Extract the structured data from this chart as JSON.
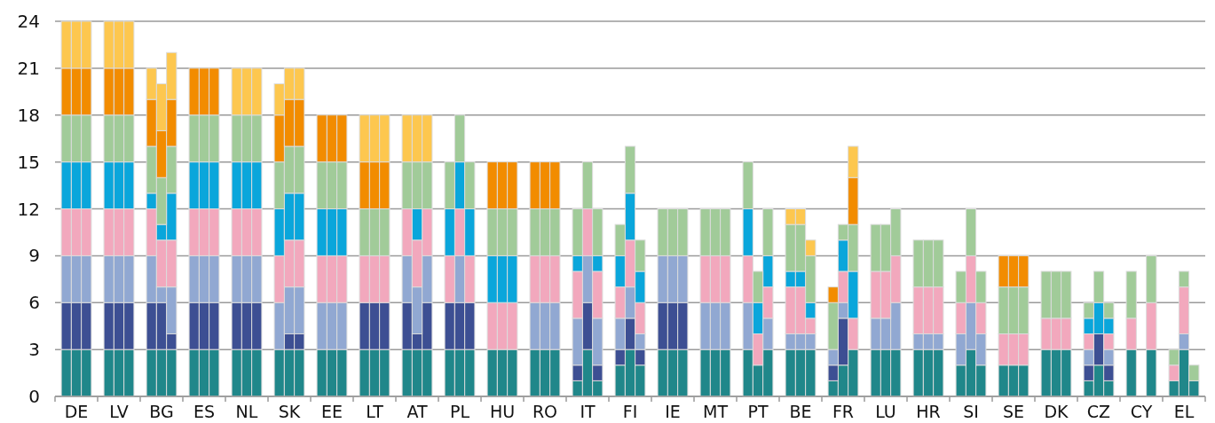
{
  "chart_data": {
    "type": "bar",
    "stacked": true,
    "grid": "y",
    "categories": [
      null,
      "DE",
      null,
      null,
      "LV",
      null,
      null,
      "BG",
      null,
      null,
      "ES",
      null,
      null,
      "NL",
      null,
      null,
      "SK",
      null,
      null,
      "EE",
      null,
      null,
      "LT",
      null,
      null,
      "AT",
      null,
      null,
      "PL",
      null,
      null,
      "HU",
      null,
      null,
      "RO",
      null,
      null,
      "IT",
      null,
      null,
      "FI",
      null,
      null,
      "IE",
      null,
      null,
      "MT",
      null,
      null,
      "PT",
      null,
      null,
      "BE",
      null,
      null,
      "FR",
      null,
      null,
      "LU",
      null,
      null,
      "HR",
      null,
      null,
      "SI",
      null,
      null,
      "SE",
      null,
      null,
      "DK",
      null,
      null,
      "CZ",
      null,
      null,
      "CY",
      null,
      null,
      "EL",
      null
    ],
    "ylim": [
      0,
      24
    ],
    "yticks": [
      0,
      3,
      6,
      9,
      12,
      15,
      18,
      21,
      24
    ],
    "series": [
      {
        "color": "#20878a",
        "values": [
          3,
          3,
          3,
          3,
          3,
          3,
          3,
          3,
          3,
          3,
          3,
          3,
          3,
          3,
          3,
          3,
          3,
          3,
          3,
          3,
          3,
          3,
          3,
          3,
          3,
          3,
          3,
          3,
          3,
          3,
          3,
          3,
          3,
          3,
          3,
          3,
          1,
          3,
          1,
          2,
          3,
          2,
          3,
          3,
          3,
          3,
          3,
          3,
          3,
          2,
          3,
          3,
          3,
          3,
          1,
          2,
          3,
          3,
          3,
          3,
          3,
          3,
          3,
          2,
          3,
          2,
          2,
          2,
          2,
          3,
          3,
          3,
          1,
          2,
          1,
          3,
          0,
          3,
          1,
          3,
          1
        ]
      },
      {
        "color": "#3d4f93",
        "values": [
          3,
          3,
          3,
          3,
          3,
          3,
          3,
          3,
          1,
          3,
          3,
          3,
          3,
          3,
          3,
          0,
          1,
          1,
          0,
          0,
          0,
          3,
          3,
          3,
          3,
          1,
          3,
          3,
          3,
          3,
          0,
          0,
          0,
          0,
          0,
          0,
          1,
          3,
          1,
          1,
          2,
          1,
          3,
          3,
          3,
          0,
          0,
          0,
          0,
          0,
          0,
          0,
          0,
          0,
          1,
          3,
          0,
          0,
          0,
          0,
          0,
          0,
          0,
          0,
          0,
          0,
          0,
          0,
          0,
          0,
          0,
          0,
          1,
          2,
          1,
          0,
          0,
          0,
          0,
          0,
          0
        ]
      },
      {
        "color": "#91a8d2",
        "values": [
          3,
          3,
          3,
          3,
          3,
          3,
          3,
          1,
          3,
          3,
          3,
          3,
          3,
          3,
          3,
          3,
          3,
          3,
          3,
          3,
          3,
          0,
          0,
          0,
          3,
          3,
          3,
          0,
          3,
          0,
          0,
          0,
          0,
          3,
          3,
          3,
          3,
          3,
          3,
          2,
          2,
          1,
          3,
          3,
          3,
          3,
          3,
          3,
          3,
          0,
          2,
          1,
          1,
          1,
          1,
          1,
          0,
          2,
          2,
          3,
          1,
          1,
          1,
          2,
          3,
          2,
          0,
          0,
          0,
          0,
          0,
          0,
          1,
          0,
          1,
          0,
          0,
          0,
          0,
          1,
          0
        ]
      },
      {
        "color": "#f2a8bd",
        "values": [
          3,
          3,
          3,
          3,
          3,
          3,
          3,
          3,
          3,
          3,
          3,
          3,
          3,
          3,
          3,
          3,
          3,
          3,
          3,
          3,
          3,
          3,
          3,
          3,
          3,
          3,
          3,
          3,
          3,
          3,
          3,
          3,
          3,
          3,
          3,
          3,
          3,
          3,
          3,
          2,
          3,
          2,
          0,
          0,
          0,
          3,
          3,
          3,
          3,
          2,
          2,
          3,
          3,
          1,
          0,
          2,
          2,
          3,
          3,
          3,
          3,
          3,
          3,
          2,
          3,
          2,
          2,
          2,
          2,
          2,
          2,
          2,
          1,
          0,
          1,
          2,
          0,
          3,
          1,
          3,
          0
        ]
      },
      {
        "color": "#0aa6db",
        "values": [
          3,
          3,
          3,
          3,
          3,
          3,
          1,
          1,
          3,
          3,
          3,
          3,
          3,
          3,
          3,
          3,
          3,
          3,
          3,
          3,
          3,
          0,
          0,
          0,
          0,
          2,
          0,
          3,
          3,
          3,
          3,
          3,
          3,
          0,
          0,
          0,
          1,
          0,
          1,
          2,
          3,
          2,
          0,
          0,
          0,
          0,
          0,
          0,
          3,
          2,
          2,
          1,
          1,
          1,
          0,
          2,
          3,
          0,
          0,
          0,
          0,
          0,
          0,
          0,
          0,
          0,
          0,
          0,
          0,
          0,
          0,
          0,
          1,
          2,
          1,
          0,
          0,
          0,
          0,
          0,
          0
        ]
      },
      {
        "color": "#a1cb99",
        "values": [
          3,
          3,
          3,
          3,
          3,
          3,
          3,
          3,
          3,
          3,
          3,
          3,
          3,
          3,
          3,
          3,
          3,
          3,
          3,
          3,
          3,
          3,
          3,
          3,
          3,
          3,
          3,
          3,
          3,
          3,
          3,
          3,
          3,
          3,
          3,
          3,
          3,
          3,
          3,
          2,
          3,
          2,
          3,
          3,
          3,
          3,
          3,
          3,
          3,
          2,
          3,
          3,
          3,
          3,
          3,
          1,
          3,
          3,
          3,
          3,
          3,
          3,
          3,
          2,
          3,
          2,
          3,
          3,
          3,
          3,
          3,
          3,
          1,
          2,
          1,
          3,
          0,
          3,
          1,
          1,
          1
        ]
      },
      {
        "color": "#f28c00",
        "values": [
          3,
          3,
          3,
          3,
          3,
          3,
          3,
          3,
          3,
          3,
          3,
          3,
          0,
          0,
          0,
          3,
          3,
          3,
          3,
          3,
          3,
          3,
          3,
          3,
          0,
          0,
          0,
          0,
          0,
          0,
          3,
          3,
          3,
          3,
          3,
          3,
          0,
          0,
          0,
          0,
          0,
          0,
          0,
          0,
          0,
          0,
          0,
          0,
          0,
          0,
          0,
          0,
          0,
          0,
          1,
          0,
          3,
          0,
          0,
          0,
          0,
          0,
          0,
          0,
          0,
          0,
          2,
          2,
          2,
          0,
          0,
          0,
          0,
          0,
          0,
          0,
          0,
          0,
          0,
          0,
          0
        ]
      },
      {
        "color": "#fdc74f",
        "values": [
          3,
          3,
          3,
          3,
          3,
          3,
          2,
          3,
          3,
          0,
          0,
          0,
          3,
          3,
          3,
          2,
          2,
          2,
          0,
          0,
          0,
          3,
          3,
          3,
          3,
          3,
          3,
          0,
          0,
          0,
          0,
          0,
          0,
          0,
          0,
          0,
          0,
          0,
          0,
          0,
          0,
          0,
          0,
          0,
          0,
          0,
          0,
          0,
          0,
          0,
          0,
          1,
          1,
          1,
          0,
          0,
          2,
          0,
          0,
          0,
          0,
          0,
          0,
          0,
          0,
          0,
          0,
          0,
          0,
          0,
          0,
          0,
          0,
          0,
          0,
          0,
          0,
          0,
          0,
          0,
          0
        ]
      }
    ]
  }
}
